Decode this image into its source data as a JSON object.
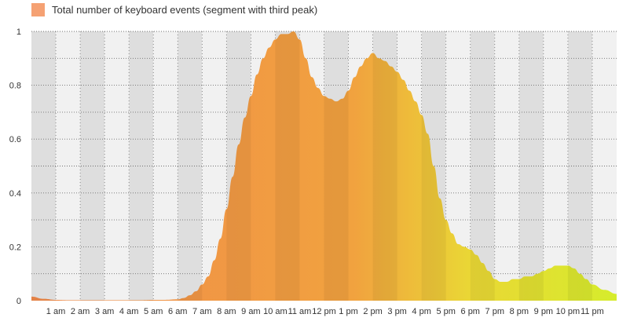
{
  "chart_data": {
    "type": "area",
    "title": "",
    "legend": {
      "label": "Total number of keyboard events (segment with third peak)",
      "position": "top-left"
    },
    "xlabel": "",
    "ylabel": "",
    "ylim": [
      0,
      1
    ],
    "yticks": [
      "0",
      "0.2",
      "0.4",
      "0.6",
      "0.8",
      "1"
    ],
    "ytick_values": [
      0,
      0.2,
      0.4,
      0.6,
      0.8,
      1
    ],
    "xlim": [
      0,
      24
    ],
    "xtick_labels": [
      "1 am",
      "2 am",
      "3 am",
      "4 am",
      "5 am",
      "6 am",
      "7 am",
      "8 am",
      "9 am",
      "10 am",
      "11 am",
      "12 pm",
      "1 pm",
      "2 pm",
      "3 pm",
      "4 pm",
      "5 pm",
      "6 pm",
      "7 pm",
      "8 pm",
      "9 pm",
      "10 pm",
      "11 pm"
    ],
    "xtick_values": [
      1,
      2,
      3,
      4,
      5,
      6,
      7,
      8,
      9,
      10,
      11,
      12,
      13,
      14,
      15,
      16,
      17,
      18,
      19,
      20,
      21,
      22,
      23
    ],
    "grid": true,
    "series": [
      {
        "name": "Total number of keyboard events (segment with third peak)",
        "x": [
          0,
          0.5,
          1,
          1.5,
          2,
          2.5,
          3,
          3.5,
          4,
          4.5,
          5,
          5.5,
          6,
          6.25,
          6.5,
          6.75,
          7,
          7.25,
          7.5,
          7.75,
          8,
          8.25,
          8.5,
          8.75,
          9,
          9.25,
          9.5,
          9.75,
          10,
          10.25,
          10.5,
          10.75,
          11,
          11.25,
          11.5,
          11.75,
          12,
          12.25,
          12.5,
          12.75,
          13,
          13.25,
          13.5,
          13.75,
          14,
          14.25,
          14.5,
          14.75,
          15,
          15.25,
          15.5,
          15.75,
          16,
          16.25,
          16.5,
          16.75,
          17,
          17.25,
          17.5,
          17.75,
          18,
          18.25,
          18.5,
          18.75,
          19,
          19.25,
          19.5,
          19.75,
          20,
          20.25,
          20.5,
          20.75,
          21,
          21.25,
          21.5,
          21.75,
          22,
          22.25,
          22.5,
          22.75,
          23,
          23.5,
          24
        ],
        "values": [
          0.015,
          0.007,
          0.003,
          0.002,
          0.002,
          0.002,
          0.002,
          0.002,
          0.002,
          0.002,
          0.003,
          0.003,
          0.005,
          0.01,
          0.02,
          0.035,
          0.06,
          0.09,
          0.15,
          0.23,
          0.34,
          0.46,
          0.58,
          0.68,
          0.76,
          0.84,
          0.9,
          0.94,
          0.97,
          0.99,
          0.99,
          1.0,
          0.97,
          0.9,
          0.83,
          0.79,
          0.76,
          0.75,
          0.74,
          0.75,
          0.78,
          0.83,
          0.87,
          0.9,
          0.92,
          0.9,
          0.89,
          0.87,
          0.85,
          0.82,
          0.78,
          0.74,
          0.69,
          0.62,
          0.5,
          0.38,
          0.3,
          0.25,
          0.21,
          0.2,
          0.19,
          0.17,
          0.14,
          0.11,
          0.08,
          0.07,
          0.07,
          0.08,
          0.08,
          0.09,
          0.09,
          0.1,
          0.11,
          0.12,
          0.13,
          0.13,
          0.13,
          0.12,
          0.1,
          0.08,
          0.06,
          0.04,
          0.025
        ]
      }
    ],
    "colors": {
      "gradient_start": "#f08a4b",
      "gradient_mid": "#f1a23f",
      "gradient_mid2": "#ead735",
      "gradient_end": "#d6ec2c",
      "legend_swatch": "#f5a173",
      "band_dark": "#dedede",
      "band_light": "#f1f1f1",
      "grid_dots": "#6f6f6f",
      "tick_text": "#333333"
    }
  }
}
